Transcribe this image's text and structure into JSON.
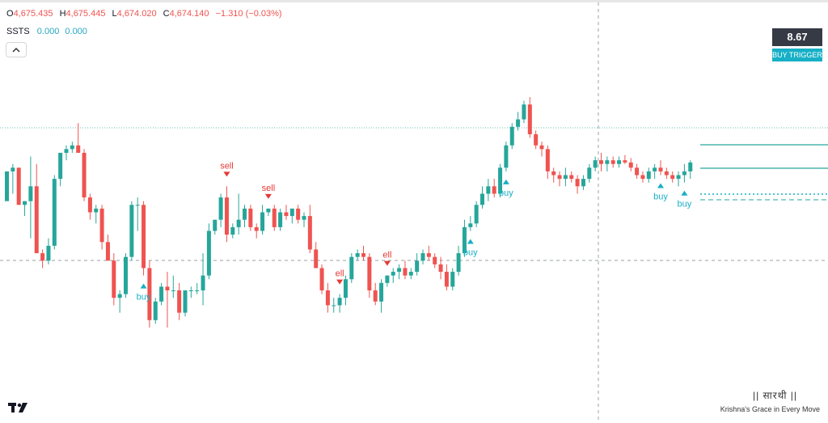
{
  "header": {
    "open_key": "O",
    "open_value": "4,675.435",
    "high_key": "H",
    "high_value": "4,675.445",
    "low_key": "L",
    "low_value": "4,674.020",
    "close_key": "C",
    "close_value": "4,674.140",
    "change_value": "−1.310 (−0.03%)"
  },
  "indicator": {
    "name": "SSTS",
    "value1": "0.000",
    "value2": "0.000"
  },
  "collapse_icon": "chevron-up-icon",
  "price_tag": {
    "value": "8.67",
    "label": "BUY TRIGGER"
  },
  "watermark": {
    "brand": "|| सारथी ||",
    "tagline": "Krishna's Grace in Every Move"
  },
  "colors": {
    "up": "#26a69a",
    "down": "#ef5350",
    "buy": "#17b0c6",
    "sell": "#e53935"
  },
  "chart_data": {
    "type": "candlestick",
    "candles": [
      [
        0.12,
        0.135,
        0.155,
        0.16
      ],
      [
        0.16,
        0.13,
        0.17,
        0.165
      ],
      [
        0.165,
        0.14,
        0.165,
        0.115
      ],
      [
        0.115,
        0.1,
        0.12,
        0.12
      ],
      [
        0.12,
        0.07,
        0.18,
        0.14
      ],
      [
        0.14,
        0.05,
        0.17,
        0.05
      ],
      [
        0.05,
        0.03,
        0.055,
        0.04
      ],
      [
        0.04,
        0.035,
        0.07,
        0.06
      ],
      [
        0.06,
        0.055,
        0.155,
        0.15
      ],
      [
        0.15,
        0.14,
        0.185,
        0.185
      ],
      [
        0.185,
        0.175,
        0.195,
        0.19
      ],
      [
        0.19,
        0.185,
        0.2,
        0.195
      ],
      [
        0.195,
        0.185,
        0.225,
        0.185
      ],
      [
        0.185,
        0.12,
        0.19,
        0.125
      ],
      [
        0.125,
        0.095,
        0.13,
        0.105
      ],
      [
        0.105,
        0.09,
        0.115,
        0.11
      ],
      [
        0.11,
        0.055,
        0.115,
        0.065
      ],
      [
        0.065,
        0.04,
        0.075,
        0.04
      ],
      [
        0.04,
        -0.02,
        0.05,
        -0.01
      ],
      [
        -0.01,
        -0.03,
        0.0,
        -0.005
      ],
      [
        -0.005,
        -0.01,
        0.05,
        0.045
      ],
      [
        0.045,
        0.04,
        0.12,
        0.115
      ],
      [
        0.115,
        0.08,
        0.125,
        0.115
      ],
      [
        0.115,
        0.02,
        0.12,
        0.03
      ],
      [
        0.03,
        -0.05,
        0.04,
        -0.04
      ],
      [
        -0.04,
        -0.045,
        -0.01,
        -0.015
      ],
      [
        -0.015,
        -0.02,
        0.01,
        0.005
      ],
      [
        0.005,
        -0.05,
        0.025,
        0.0
      ],
      [
        0.0,
        -0.01,
        0.02,
        0.0
      ],
      [
        0.0,
        -0.04,
        0.01,
        -0.03
      ],
      [
        -0.03,
        -0.035,
        0.0,
        0.0
      ],
      [
        0.0,
        -0.01,
        0.005,
        0.0
      ],
      [
        0.0,
        -0.005,
        0.01,
        0.0
      ],
      [
        0.0,
        -0.02,
        0.05,
        0.02
      ],
      [
        0.02,
        0.015,
        0.09,
        0.08
      ],
      [
        0.08,
        0.075,
        0.095,
        0.095
      ],
      [
        0.095,
        0.085,
        0.13,
        0.125
      ],
      [
        0.125,
        0.065,
        0.14,
        0.075
      ],
      [
        0.075,
        0.07,
        0.09,
        0.085
      ],
      [
        0.085,
        0.075,
        0.13,
        0.095
      ],
      [
        0.095,
        0.085,
        0.115,
        0.11
      ],
      [
        0.11,
        0.08,
        0.115,
        0.085
      ],
      [
        0.085,
        0.07,
        0.09,
        0.08
      ],
      [
        0.08,
        0.075,
        0.115,
        0.105
      ],
      [
        0.105,
        0.1,
        0.11,
        0.11
      ],
      [
        0.11,
        0.08,
        0.115,
        0.085
      ],
      [
        0.085,
        0.08,
        0.11,
        0.105
      ],
      [
        0.105,
        0.095,
        0.115,
        0.1
      ],
      [
        0.1,
        0.09,
        0.11,
        0.11
      ],
      [
        0.11,
        0.09,
        0.115,
        0.095
      ],
      [
        0.095,
        0.085,
        0.105,
        0.1
      ],
      [
        0.1,
        0.05,
        0.115,
        0.055
      ],
      [
        0.055,
        0.03,
        0.065,
        0.03
      ],
      [
        0.03,
        -0.005,
        0.035,
        0.0
      ],
      [
        0.0,
        -0.03,
        0.01,
        -0.02
      ],
      [
        -0.02,
        -0.03,
        -0.01,
        -0.02
      ],
      [
        -0.02,
        -0.03,
        -0.005,
        -0.01
      ],
      [
        -0.01,
        -0.02,
        0.02,
        0.015
      ],
      [
        0.015,
        0.01,
        0.05,
        0.045
      ],
      [
        0.045,
        0.04,
        0.055,
        0.05
      ],
      [
        0.05,
        0.04,
        0.06,
        0.045
      ],
      [
        0.045,
        -0.01,
        0.05,
        0.0
      ],
      [
        0.0,
        -0.02,
        0.01,
        -0.015
      ],
      [
        -0.015,
        -0.03,
        0.015,
        0.01
      ],
      [
        0.01,
        0.005,
        0.02,
        0.02
      ],
      [
        0.02,
        0.01,
        0.03,
        0.025
      ],
      [
        0.025,
        0.015,
        0.035,
        0.03
      ],
      [
        0.03,
        0.015,
        0.04,
        0.02
      ],
      [
        0.02,
        0.015,
        0.03,
        0.025
      ],
      [
        0.025,
        0.02,
        0.05,
        0.04
      ],
      [
        0.04,
        0.035,
        0.055,
        0.05
      ],
      [
        0.05,
        0.04,
        0.06,
        0.045
      ],
      [
        0.045,
        0.03,
        0.05,
        0.035
      ],
      [
        0.035,
        0.015,
        0.045,
        0.025
      ],
      [
        0.025,
        0.0,
        0.035,
        0.005
      ],
      [
        0.005,
        0.0,
        0.03,
        0.025
      ],
      [
        0.025,
        0.02,
        0.06,
        0.05
      ],
      [
        0.05,
        0.045,
        0.095,
        0.085
      ],
      [
        0.085,
        0.08,
        0.1,
        0.09
      ],
      [
        0.09,
        0.085,
        0.12,
        0.115
      ],
      [
        0.115,
        0.11,
        0.14,
        0.13
      ],
      [
        0.13,
        0.12,
        0.15,
        0.14
      ],
      [
        0.14,
        0.125,
        0.15,
        0.13
      ],
      [
        0.13,
        0.125,
        0.17,
        0.165
      ],
      [
        0.165,
        0.16,
        0.2,
        0.195
      ],
      [
        0.195,
        0.19,
        0.225,
        0.22
      ],
      [
        0.22,
        0.215,
        0.24,
        0.23
      ],
      [
        0.23,
        0.225,
        0.255,
        0.25
      ],
      [
        0.25,
        0.205,
        0.26,
        0.21
      ],
      [
        0.21,
        0.19,
        0.215,
        0.195
      ],
      [
        0.195,
        0.18,
        0.2,
        0.19
      ],
      [
        0.19,
        0.15,
        0.195,
        0.16
      ],
      [
        0.16,
        0.145,
        0.165,
        0.155
      ],
      [
        0.155,
        0.14,
        0.16,
        0.15
      ],
      [
        0.15,
        0.14,
        0.165,
        0.155
      ],
      [
        0.155,
        0.145,
        0.16,
        0.15
      ],
      [
        0.15,
        0.13,
        0.155,
        0.14
      ],
      [
        0.14,
        0.135,
        0.155,
        0.15
      ],
      [
        0.15,
        0.145,
        0.17,
        0.165
      ],
      [
        0.165,
        0.16,
        0.18,
        0.175
      ],
      [
        0.175,
        0.16,
        0.185,
        0.17
      ],
      [
        0.17,
        0.16,
        0.18,
        0.175
      ],
      [
        0.175,
        0.165,
        0.18,
        0.17
      ],
      [
        0.17,
        0.165,
        0.18,
        0.175
      ],
      [
        0.175,
        0.17,
        0.182,
        0.172
      ],
      [
        0.172,
        0.16,
        0.178,
        0.165
      ],
      [
        0.165,
        0.15,
        0.17,
        0.155
      ],
      [
        0.155,
        0.145,
        0.16,
        0.15
      ],
      [
        0.15,
        0.145,
        0.165,
        0.16
      ],
      [
        0.16,
        0.15,
        0.17,
        0.165
      ],
      [
        0.165,
        0.155,
        0.175,
        0.16
      ],
      [
        0.16,
        0.15,
        0.165,
        0.155
      ],
      [
        0.155,
        0.145,
        0.16,
        0.15
      ],
      [
        0.15,
        0.14,
        0.16,
        0.155
      ],
      [
        0.155,
        0.145,
        0.17,
        0.16
      ],
      [
        0.16,
        0.15,
        0.175,
        0.172
      ]
    ],
    "signals": [
      {
        "type": "buy",
        "label": "buy",
        "index": 23
      },
      {
        "type": "sell",
        "label": "sell",
        "index": 37
      },
      {
        "type": "sell",
        "label": "sell",
        "index": 44
      },
      {
        "type": "sell",
        "label": "ell",
        "index": 56
      },
      {
        "type": "sell",
        "label": "ell",
        "index": 64
      },
      {
        "type": "buy",
        "label": "buy",
        "index": 78
      },
      {
        "type": "buy",
        "label": "buy",
        "index": 84
      },
      {
        "type": "buy",
        "label": "buy",
        "index": 110
      },
      {
        "type": "buy",
        "label": "buy",
        "index": 114
      }
    ]
  }
}
